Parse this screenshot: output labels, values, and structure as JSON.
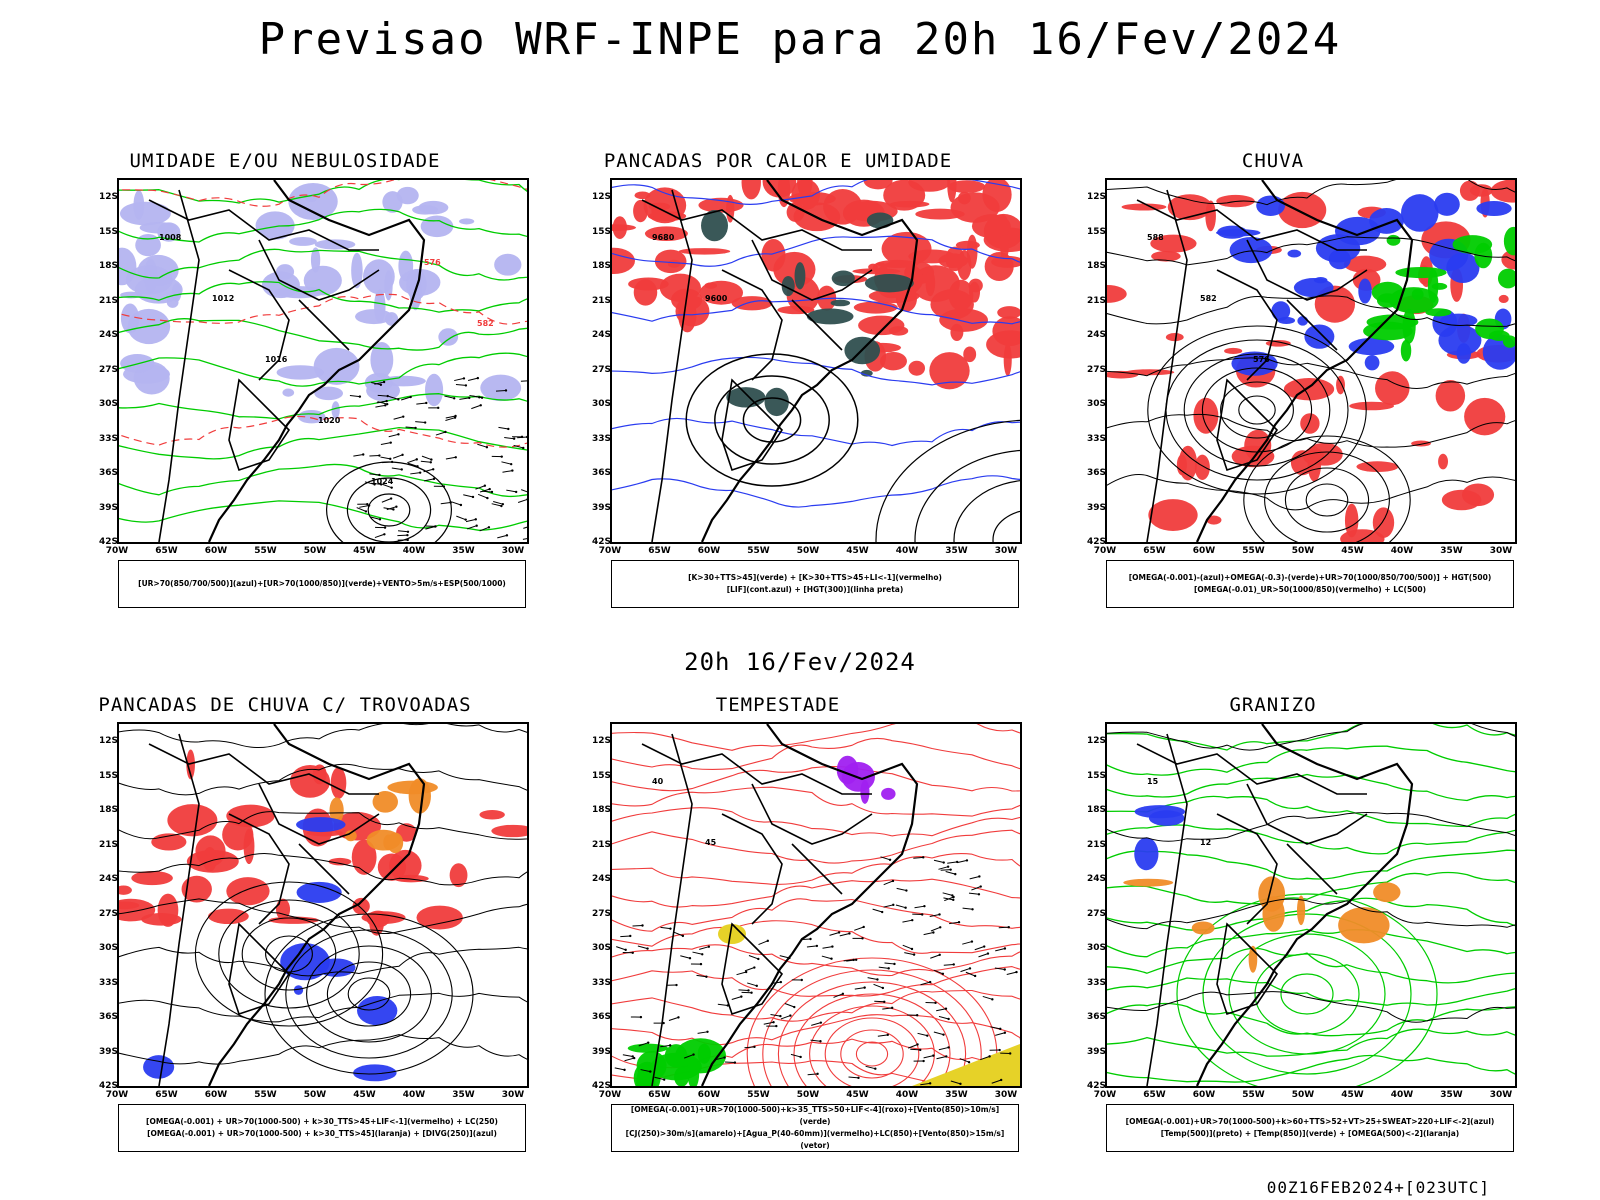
{
  "title": "Previsao WRF-INPE  para 20h 16/Fev/2024",
  "subtitle": "20h 16/Fev/2024",
  "footer": "00Z16FEB2024+[023UTC]",
  "lat_labels": [
    "12S",
    "15S",
    "18S",
    "21S",
    "24S",
    "27S",
    "30S",
    "33S",
    "36S",
    "39S",
    "42S"
  ],
  "lon_labels": [
    "70W",
    "65W",
    "60W",
    "55W",
    "50W",
    "45W",
    "40W",
    "35W",
    "30W"
  ],
  "panels": [
    {
      "title": "UMIDADE E/OU NEBULOSIDADE",
      "legend": [
        "[UR>70(850/700/500)](azul)+[UR>70(1000/850)](verde)+VENTO>5m/s+ESP(500/1000)"
      ],
      "labels": [
        "1008",
        "1012",
        "1016",
        "1020",
        "1024",
        "576",
        "582"
      ]
    },
    {
      "title": "PANCADAS POR CALOR E UMIDADE",
      "legend": [
        "[K>30+TTS>45](verde) + [K>30+TTS>45+LI<-1](vermelho)",
        "[LIF](cont.azul) + [HGT(300)](linha preta)"
      ],
      "labels": [
        "9680",
        "9600"
      ]
    },
    {
      "title": "CHUVA",
      "legend": [
        "[OMEGA(-0.001)-(azul)+OMEGA(-0.3)-(verde)+UR>70(1000/850/700/500)] + HGT(500)",
        "[OMEGA(-0.01)_UR>50(1000/850)(vermelho) + LC(500)"
      ],
      "labels": [
        "588",
        "582",
        "576"
      ]
    },
    {
      "title": "PANCADAS DE CHUVA C/ TROVOADAS",
      "legend": [
        "[OMEGA(-0.001) + UR>70(1000-500) + k>30_TTS>45+LIF<-1](vermelho) + LC(250)",
        "[OMEGA(-0.001) + UR>70(1000-500) + k>30_TTS>45](laranja) + [DIVG(250)](azul)"
      ],
      "labels": []
    },
    {
      "title": "TEMPESTADE",
      "legend": [
        "[OMEGA(-0.001)+UR>70(1000-500)+k>35_TTS>50+LIF<-4](roxo)+[Vento(850)>10m/s](verde)",
        "[CJ(250)>30m/s](amarelo)+[Agua_P(40-60mm)](vermelho)+LC(850)+[Vento(850)>15m/s](vetor)"
      ],
      "labels": [
        "40",
        "45"
      ]
    },
    {
      "title": "GRANIZO",
      "legend": [
        "[OMEGA(-0.001)+UR>70(1000-500)+k>60+TTS>52+VT>25+SWEAT>220+LIF<-2](azul)",
        "[Temp(500)](preto) + [Temp(850)](verde) + [OMEGA(500)<-2](laranja)"
      ],
      "labels": [
        "15",
        "12"
      ]
    }
  ],
  "colors": {
    "blue_fill": "#b4b4f0",
    "green": "#00cc00",
    "red": "#f03c3c",
    "blue": "#2a3cf0",
    "orange": "#f08c28",
    "purple": "#a020f0",
    "yellow": "#e6d228",
    "darkgreen": "#2f4f4f"
  }
}
